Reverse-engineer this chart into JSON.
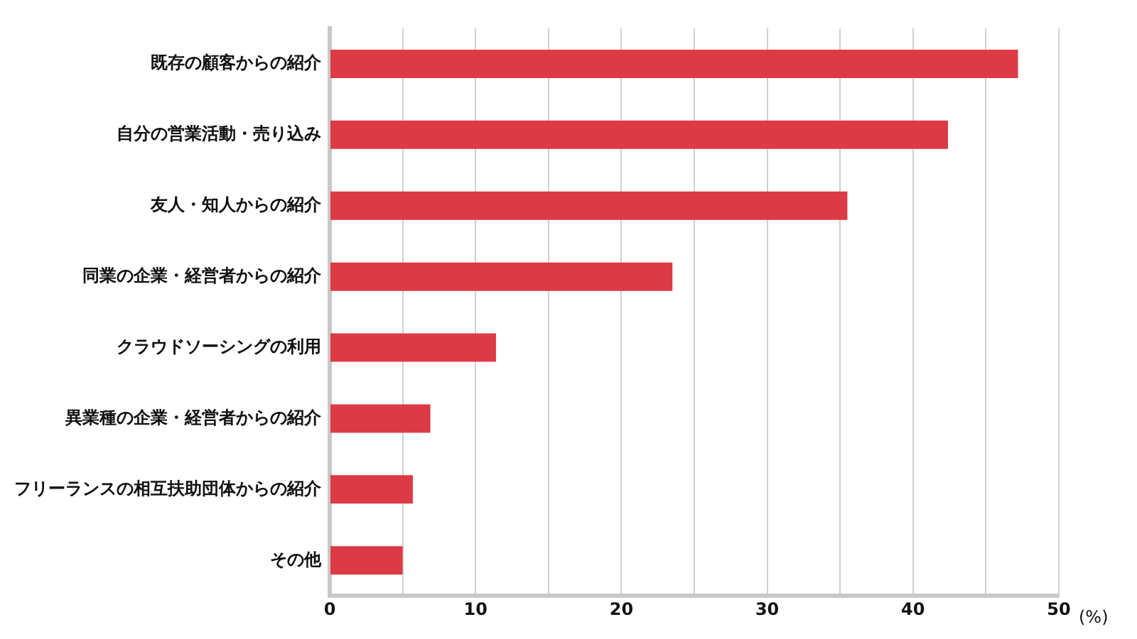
{
  "chart_data": {
    "type": "bar",
    "orientation": "horizontal",
    "xlabel": "(%)",
    "categories": [
      "既存の顧客からの紹介",
      "自分の営業活動・売り込み",
      "友人・知人からの紹介",
      "同業の企業・経営者からの紹介",
      "クラウドソーシングの利用",
      "異業種の企業・経営者からの紹介",
      "フリーランスの相互扶助団体からの紹介",
      "その他"
    ],
    "values": [
      47.2,
      42.4,
      35.5,
      23.5,
      11.4,
      6.9,
      5.7,
      5.0
    ],
    "color": "#dc3a45",
    "xlim": [
      0,
      50
    ],
    "xticks": [
      0,
      {
        "value": 5,
        "label": null
      },
      10,
      {
        "value": 15,
        "label": null
      },
      20,
      {
        "value": 25,
        "label": null
      },
      30,
      {
        "value": 35,
        "label": null
      },
      40,
      {
        "value": 45,
        "label": null
      },
      50
    ],
    "grid": "x",
    "legend": false
  }
}
